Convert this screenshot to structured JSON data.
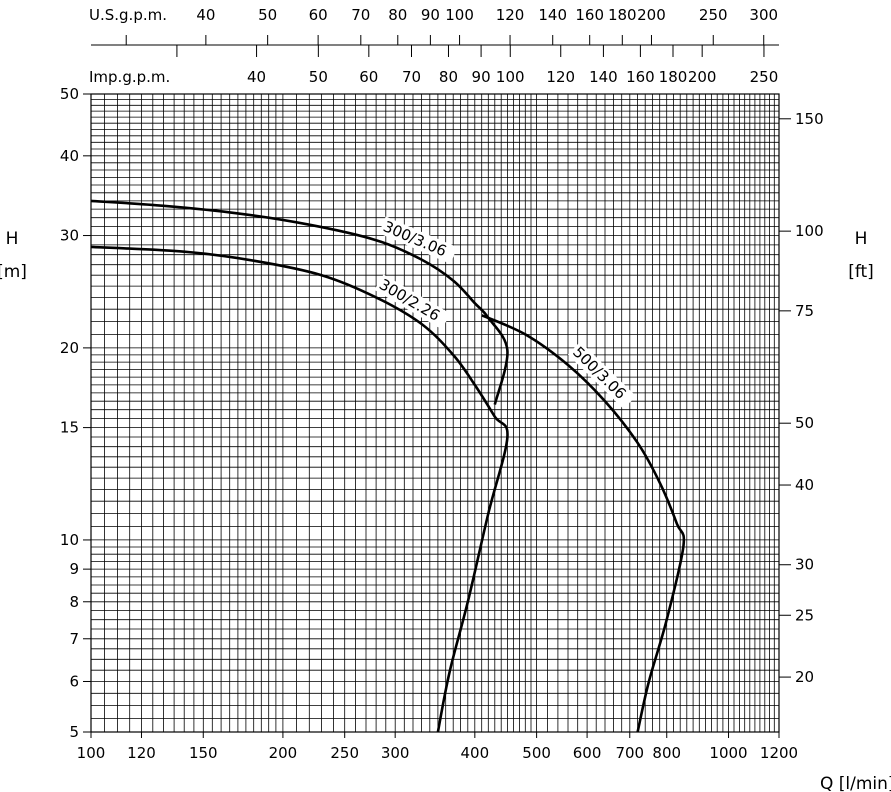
{
  "chart_data": {
    "type": "line",
    "x_scale": "log",
    "y_scale": "log",
    "x_axis": {
      "label": "Q [l/min]",
      "range": [
        100,
        1200
      ],
      "ticks": [
        {
          "v": 100,
          "t": "100"
        },
        {
          "v": 120,
          "t": "120"
        },
        {
          "v": 150,
          "t": "150"
        },
        {
          "v": 200,
          "t": "200"
        },
        {
          "v": 250,
          "t": "250"
        },
        {
          "v": 300,
          "t": "300"
        },
        {
          "v": 400,
          "t": "400"
        },
        {
          "v": 500,
          "t": "500"
        },
        {
          "v": 600,
          "t": "600"
        },
        {
          "v": 700,
          "t": "700"
        },
        {
          "v": 800,
          "t": "800"
        },
        {
          "v": 1000,
          "t": "1000"
        },
        {
          "v": 1200,
          "t": "1200"
        }
      ]
    },
    "y_axis_left": {
      "label": "H",
      "unit": "[m]",
      "range": [
        5,
        50
      ],
      "ticks": [
        {
          "v": 5,
          "t": "5"
        },
        {
          "v": 6,
          "t": "6"
        },
        {
          "v": 7,
          "t": "7"
        },
        {
          "v": 8,
          "t": "8"
        },
        {
          "v": 9,
          "t": "9"
        },
        {
          "v": 10,
          "t": "10"
        },
        {
          "v": 15,
          "t": "15"
        },
        {
          "v": 20,
          "t": "20"
        },
        {
          "v": 30,
          "t": "30"
        },
        {
          "v": 40,
          "t": "40"
        },
        {
          "v": 50,
          "t": "50"
        }
      ]
    },
    "y_axis_right": {
      "label": "H",
      "unit": "[ft]",
      "ticks": [
        {
          "v": 20,
          "t": "20"
        },
        {
          "v": 25,
          "t": "25"
        },
        {
          "v": 30,
          "t": "30"
        },
        {
          "v": 40,
          "t": "40"
        },
        {
          "v": 50,
          "t": "50"
        },
        {
          "v": 75,
          "t": "75"
        },
        {
          "v": 100,
          "t": "100"
        },
        {
          "v": 150,
          "t": "150"
        }
      ]
    },
    "top_axis_us": {
      "label": "U.S.g.p.m.",
      "ticks": [
        {
          "v": 40,
          "t": "40"
        },
        {
          "v": 50,
          "t": "50"
        },
        {
          "v": 60,
          "t": "60"
        },
        {
          "v": 70,
          "t": "70"
        },
        {
          "v": 80,
          "t": "80"
        },
        {
          "v": 90,
          "t": "90"
        },
        {
          "v": 100,
          "t": "100"
        },
        {
          "v": 120,
          "t": "120"
        },
        {
          "v": 140,
          "t": "140"
        },
        {
          "v": 160,
          "t": "160"
        },
        {
          "v": 180,
          "t": "180"
        },
        {
          "v": 200,
          "t": "200"
        },
        {
          "v": 250,
          "t": "250"
        },
        {
          "v": 300,
          "t": "300"
        }
      ]
    },
    "top_axis_imp": {
      "label": "Imp.g.p.m.",
      "ticks": [
        {
          "v": 40,
          "t": "40"
        },
        {
          "v": 50,
          "t": "50"
        },
        {
          "v": 60,
          "t": "60"
        },
        {
          "v": 70,
          "t": "70"
        },
        {
          "v": 80,
          "t": "80"
        },
        {
          "v": 90,
          "t": "90"
        },
        {
          "v": 100,
          "t": "100"
        },
        {
          "v": 120,
          "t": "120"
        },
        {
          "v": 140,
          "t": "140"
        },
        {
          "v": 160,
          "t": "160"
        },
        {
          "v": 180,
          "t": "180"
        },
        {
          "v": 200,
          "t": "200"
        },
        {
          "v": 250,
          "t": "250"
        }
      ]
    },
    "grid": true,
    "series": [
      {
        "name": "300/3.06",
        "points": [
          [
            100,
            34
          ],
          [
            130,
            33.4
          ],
          [
            170,
            32.5
          ],
          [
            220,
            31.2
          ],
          [
            280,
            29.5
          ],
          [
            330,
            27.5
          ],
          [
            370,
            25.5
          ],
          [
            400,
            23.5
          ],
          [
            420,
            22.3
          ],
          [
            450,
            19.8
          ],
          [
            430,
            16.3
          ]
        ]
      },
      {
        "name": "300/2.26",
        "points": [
          [
            100,
            28.8
          ],
          [
            140,
            28.3
          ],
          [
            180,
            27.4
          ],
          [
            230,
            26
          ],
          [
            280,
            24
          ],
          [
            330,
            21.8
          ],
          [
            370,
            19.5
          ],
          [
            400,
            17.5
          ],
          [
            430,
            15.6
          ],
          [
            450,
            14.5
          ],
          [
            420,
            11
          ],
          [
            390,
            8
          ],
          [
            365,
            6.2
          ],
          [
            350,
            5
          ]
        ]
      },
      {
        "name": "500/3.06",
        "points": [
          [
            410,
            22.5
          ],
          [
            480,
            21
          ],
          [
            560,
            18.8
          ],
          [
            640,
            16.5
          ],
          [
            720,
            14.2
          ],
          [
            780,
            12.3
          ],
          [
            830,
            10.6
          ],
          [
            850,
            9.8
          ],
          [
            800,
            7.5
          ],
          [
            750,
            6
          ],
          [
            720,
            5
          ]
        ]
      }
    ]
  }
}
